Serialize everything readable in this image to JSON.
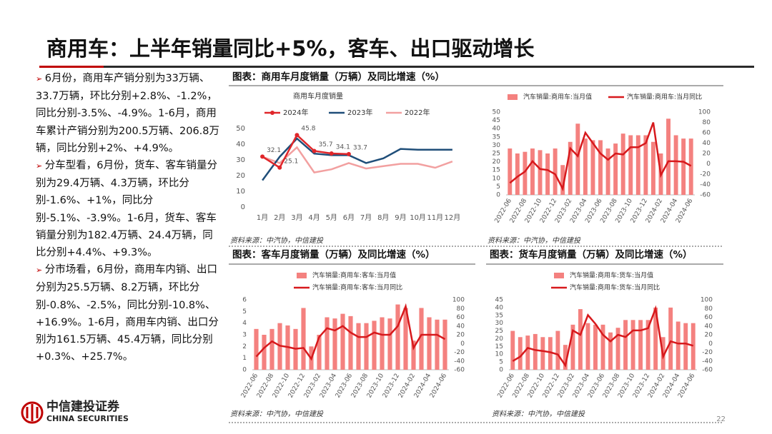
{
  "title": "商用车：上半年销量同比+5%，客车、出口驱动增长",
  "bullets": [
    "6月份，商用车产销分别为33万辆、33.7万辆，环比分别+2.8%、-1.2%，同比分别-3.5%、-4.9%。1-6月，商用车累计产销分别为200.5万辆、206.8万辆，同比分别+2%、+4.9%。",
    "分车型看，6月份，货车、客车销量分别为29.4万辆、4.3万辆，环比分别-1.6%、+1%，同比分别-5.1%、-3.9%。1-6月，货车、客车销量分别为182.4万辆、24.4万辆，同比分别+4.4%、+9.3%。",
    "分市场看，6月份，商用车内销、出口分别为25.5万辆、8.2万辆，环比分别-0.8%、-2.5%，同比分别-10.8%、+16.9%。1-6月，商用车内销、出口分别为161.5万辆、45.4万辆，同比分别+0.3%、+25.7%。"
  ],
  "logo": {
    "name": "中信建投证券",
    "name_en": "CHINA SECURITIES"
  },
  "page_number": "22",
  "chart_data": [
    {
      "type": "line",
      "caption": "图表：商用车月度销量（万辆）及同比增速（%）",
      "title": "商用车月度销量",
      "categories": [
        "1月",
        "2月",
        "3月",
        "4月",
        "5月",
        "6月",
        "7月",
        "8月",
        "9月",
        "10月",
        "11月",
        "12月"
      ],
      "series": [
        {
          "name": "2024年",
          "color": "#e0262a",
          "marker": true,
          "labels": true,
          "values": [
            32.1,
            25.1,
            45.8,
            35.7,
            34.1,
            33.7,
            null,
            null,
            null,
            null,
            null,
            null
          ]
        },
        {
          "name": "2023年",
          "color": "#1f4e79",
          "values": [
            17,
            32,
            43.6,
            34,
            33,
            33,
            28,
            31,
            37,
            36.5,
            36.5,
            36.5
          ]
        },
        {
          "name": "2022年",
          "color": "#f2a0a0",
          "values": [
            32,
            28,
            38,
            22,
            24,
            28,
            24.5,
            26,
            27.5,
            27.5,
            25,
            29
          ]
        }
      ],
      "ylim": [
        0,
        50
      ],
      "yticks": [
        0,
        10,
        20,
        30,
        40,
        50
      ],
      "source": "资料来源：中汽协，中信建投"
    },
    {
      "type": "combo",
      "categories": [
        "2022-06",
        null,
        "2022-08",
        null,
        "2022-10",
        null,
        "2022-12",
        null,
        "2023-02",
        null,
        "2023-04",
        null,
        "2023-06",
        null,
        "2023-08",
        null,
        "2023-10",
        null,
        "2023-12",
        null,
        "2024-02",
        null,
        "2024-04",
        null,
        "2024-06"
      ],
      "series": [
        {
          "name": "汽车销量:商用车:当月值",
          "type": "bar",
          "color": "#f4817f",
          "values": [
            28,
            25,
            26,
            28,
            27,
            25,
            28,
            18,
            32,
            43,
            34,
            33,
            33,
            28,
            31,
            37,
            36,
            36,
            36,
            32,
            25,
            46,
            36,
            34,
            34
          ]
        },
        {
          "name": "汽车销量:商用车:当月同比",
          "type": "line",
          "axis": "y2",
          "color": "#d7191c",
          "values": [
            -37,
            -25,
            -15,
            5,
            -10,
            -12,
            -20,
            -48,
            30,
            15,
            60,
            40,
            20,
            8,
            20,
            18,
            32,
            32,
            40,
            80,
            -22,
            5,
            5,
            4,
            -4
          ]
        }
      ],
      "ylim": [
        0,
        50
      ],
      "yticks": [
        0,
        5,
        10,
        15,
        20,
        25,
        30,
        35,
        40,
        45,
        50
      ],
      "y2lim": [
        -60,
        100
      ],
      "y2ticks": [
        -60,
        -40,
        -20,
        0,
        20,
        40,
        60,
        80,
        100
      ],
      "source": "资料来源：中汽协，中信建投"
    },
    {
      "type": "combo",
      "caption": "图表：客车月度销量（万辆）及同比增速（%）",
      "categories": [
        "2022-06",
        null,
        "2022-08",
        null,
        "2022-10",
        null,
        "2022-12",
        null,
        "2023-02",
        null,
        "2023-04",
        null,
        "2023-06",
        null,
        "2023-08",
        null,
        "2023-10",
        null,
        "2023-12",
        null,
        "2024-02",
        null,
        "2024-04",
        null,
        "2024-06"
      ],
      "series": [
        {
          "name": "汽车销量:商用车:客车:当月值",
          "type": "bar",
          "color": "#f4817f",
          "values": [
            3.5,
            3,
            3.5,
            4,
            3.8,
            3.5,
            5.3,
            2,
            3,
            4.5,
            4.4,
            4.8,
            4.6,
            4,
            4,
            4.2,
            4.5,
            4.4,
            5.6,
            5.3,
            2.5,
            5.3,
            4.5,
            4.3,
            4.3
          ]
        },
        {
          "name": "汽车销量:商用车:客车:当月同比",
          "type": "line",
          "axis": "y2",
          "color": "#d7191c",
          "values": [
            -30,
            -10,
            5,
            -5,
            -8,
            -12,
            -10,
            -35,
            15,
            35,
            30,
            40,
            25,
            15,
            15,
            25,
            20,
            20,
            40,
            85,
            -10,
            20,
            20,
            20,
            10
          ]
        }
      ],
      "ylim": [
        0,
        6
      ],
      "yticks": [
        0,
        1,
        2,
        3,
        4,
        5,
        6
      ],
      "y2lim": [
        -60,
        100
      ],
      "y2ticks": [
        -60,
        -40,
        -20,
        0,
        20,
        40,
        60,
        80,
        100
      ],
      "source": "资料来源：中汽协，中信建投"
    },
    {
      "type": "combo",
      "caption": "图表：货车月度销量（万辆）及同比增速（%）",
      "categories": [
        "2022-06",
        null,
        "2022-08",
        null,
        "2022-10",
        null,
        "2022-12",
        null,
        "2023-02",
        null,
        "2023-04",
        null,
        "2023-06",
        null,
        "2023-08",
        null,
        "2023-10",
        null,
        "2023-12",
        null,
        "2024-02",
        null,
        "2024-04",
        null,
        "2024-06"
      ],
      "series": [
        {
          "name": "汽车销量:商用车:货车:当月值",
          "type": "bar",
          "color": "#f4817f",
          "values": [
            25,
            21,
            22,
            23,
            21,
            21,
            25,
            16,
            29,
            39,
            30,
            29,
            29,
            24,
            27,
            32,
            32,
            32,
            32,
            40,
            21,
            40,
            31,
            30,
            30
          ]
        },
        {
          "name": "汽车销量:商用车:货车:当月同比",
          "type": "line",
          "axis": "y2",
          "color": "#d7191c",
          "values": [
            -40,
            -30,
            -10,
            -15,
            -17,
            -20,
            -25,
            -50,
            30,
            20,
            65,
            45,
            20,
            5,
            20,
            15,
            30,
            30,
            35,
            80,
            -30,
            5,
            0,
            0,
            -5
          ]
        }
      ],
      "ylim": [
        0,
        45
      ],
      "yticks": [
        0,
        5,
        10,
        15,
        20,
        25,
        30,
        35,
        40,
        45
      ],
      "y2lim": [
        -60,
        100
      ],
      "y2ticks": [
        -60,
        -40,
        -20,
        0,
        20,
        40,
        60,
        80,
        100
      ],
      "source": "资料来源：中汽协，中信建投"
    }
  ]
}
